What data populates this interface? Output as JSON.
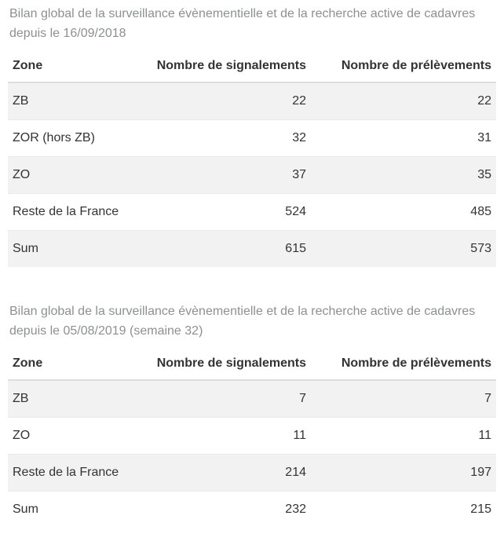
{
  "colors": {
    "title_text": "#8d9091",
    "header_text": "#333333",
    "cell_text": "#333333",
    "row_stripe": "#f2f2f2",
    "divider": "#dddddd",
    "background": "#ffffff"
  },
  "chart_data": [
    {
      "type": "table",
      "title": "Bilan global de la surveillance évènementielle et de la recherche active de cadavres depuis le 16/09/2018",
      "columns": [
        "Zone",
        "Nombre de signalements",
        "Nombre de prélèvements"
      ],
      "rows": [
        [
          "ZB",
          "22",
          "22"
        ],
        [
          "ZOR (hors ZB)",
          "32",
          "31"
        ],
        [
          "ZO",
          "37",
          "35"
        ],
        [
          "Reste de la France",
          "524",
          "485"
        ],
        [
          "Sum",
          "615",
          "573"
        ]
      ],
      "layout": {
        "stripe_first_row": true,
        "numeric_columns_right_aligned": true
      }
    },
    {
      "type": "table",
      "title": "Bilan global de la surveillance évènementielle et de la recherche active de cadavres depuis le 05/08/2019 (semaine 32)",
      "columns": [
        "Zone",
        "Nombre de signalements",
        "Nombre de prélèvements"
      ],
      "rows": [
        [
          "ZB",
          "7",
          "7"
        ],
        [
          "ZO",
          "11",
          "11"
        ],
        [
          "Reste de la France",
          "214",
          "197"
        ],
        [
          "Sum",
          "232",
          "215"
        ]
      ],
      "layout": {
        "stripe_first_row": true,
        "numeric_columns_right_aligned": true
      }
    }
  ]
}
